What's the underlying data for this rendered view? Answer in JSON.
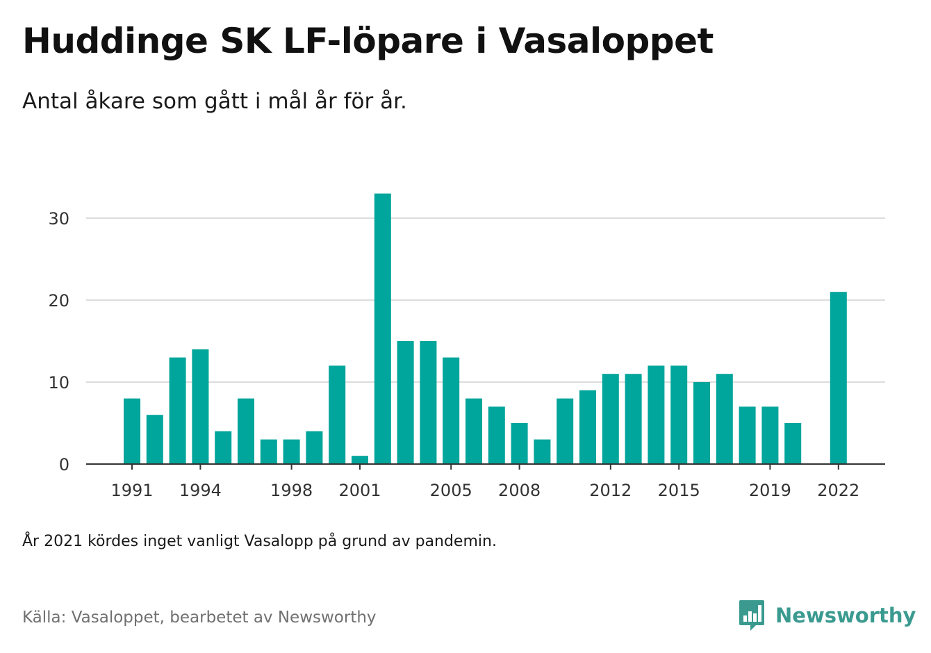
{
  "title": "Huddinge SK LF-löpare i Vasaloppet",
  "subtitle": "Antal åkare som gått i mål år för år.",
  "note": "År 2021 kördes inget vanligt Vasalopp på grund av pandemin.",
  "source": "Källa: Vasaloppet, bearbetet av Newsworthy",
  "brand": {
    "name": "Newsworthy",
    "icon": "newsworthy-logo-icon",
    "color": "#3a9a8f"
  },
  "colors": {
    "bar": "#00a59b",
    "grid": "#dcdcdc",
    "axis": "#333333",
    "tick_text": "#333333"
  },
  "chart_data": {
    "type": "bar",
    "title": "Huddinge SK LF-löpare i Vasaloppet",
    "subtitle": "Antal åkare som gått i mål år för år.",
    "x": [
      1991,
      1992,
      1993,
      1994,
      1995,
      1996,
      1997,
      1998,
      1999,
      2000,
      2001,
      2002,
      2003,
      2004,
      2005,
      2006,
      2007,
      2008,
      2009,
      2010,
      2011,
      2012,
      2013,
      2014,
      2015,
      2016,
      2017,
      2018,
      2019,
      2020,
      2021,
      2022
    ],
    "values": [
      8,
      6,
      13,
      14,
      4,
      8,
      3,
      3,
      4,
      12,
      1,
      33,
      15,
      15,
      13,
      8,
      7,
      5,
      3,
      8,
      9,
      11,
      11,
      12,
      12,
      10,
      11,
      7,
      7,
      5,
      null,
      21
    ],
    "xticks": [
      1991,
      1994,
      1998,
      2001,
      2005,
      2008,
      2012,
      2015,
      2019,
      2022
    ],
    "yticks": [
      0,
      10,
      20,
      30
    ],
    "ylim": [
      0,
      33
    ],
    "grid": true,
    "xlabel": "",
    "ylabel": ""
  }
}
